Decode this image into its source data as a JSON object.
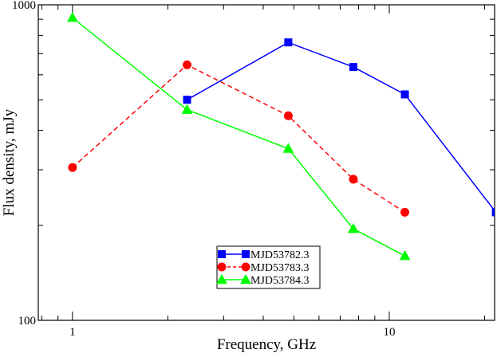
{
  "chart_data": {
    "type": "line",
    "title": "",
    "xlabel": "Frequency, GHz",
    "ylabel": "Flux density, mJy",
    "xscale": "log",
    "yscale": "log",
    "xlim": [
      0.78,
      21.5
    ],
    "ylim": [
      100,
      1000
    ],
    "x_tick_labels": [
      {
        "value": 1,
        "label": "1"
      },
      {
        "value": 10,
        "label": "10"
      }
    ],
    "y_tick_labels": [
      {
        "value": 100,
        "label": "100"
      },
      {
        "value": 1000,
        "label": "1000"
      }
    ],
    "grid": false,
    "legend_position": "bottom-center",
    "series": [
      {
        "name": "MJD53782.3",
        "color": "#0000ff",
        "marker": "square",
        "line_style": "solid",
        "x": [
          2.3,
          4.8,
          7.7,
          11.2,
          21.7
        ],
        "y": [
          500,
          760,
          635,
          520,
          220
        ]
      },
      {
        "name": "MJD53783.3",
        "color": "#ff0000",
        "marker": "circle",
        "line_style": "dashed",
        "x": [
          1.0,
          2.3,
          4.8,
          7.7,
          11.2
        ],
        "y": [
          305,
          645,
          445,
          280,
          220
        ]
      },
      {
        "name": "MJD53784.3",
        "color": "#00ff00",
        "marker": "triangle",
        "line_style": "solid",
        "x": [
          1.0,
          2.3,
          4.8,
          7.7,
          11.2
        ],
        "y": [
          910,
          465,
          350,
          195,
          160
        ]
      }
    ]
  }
}
